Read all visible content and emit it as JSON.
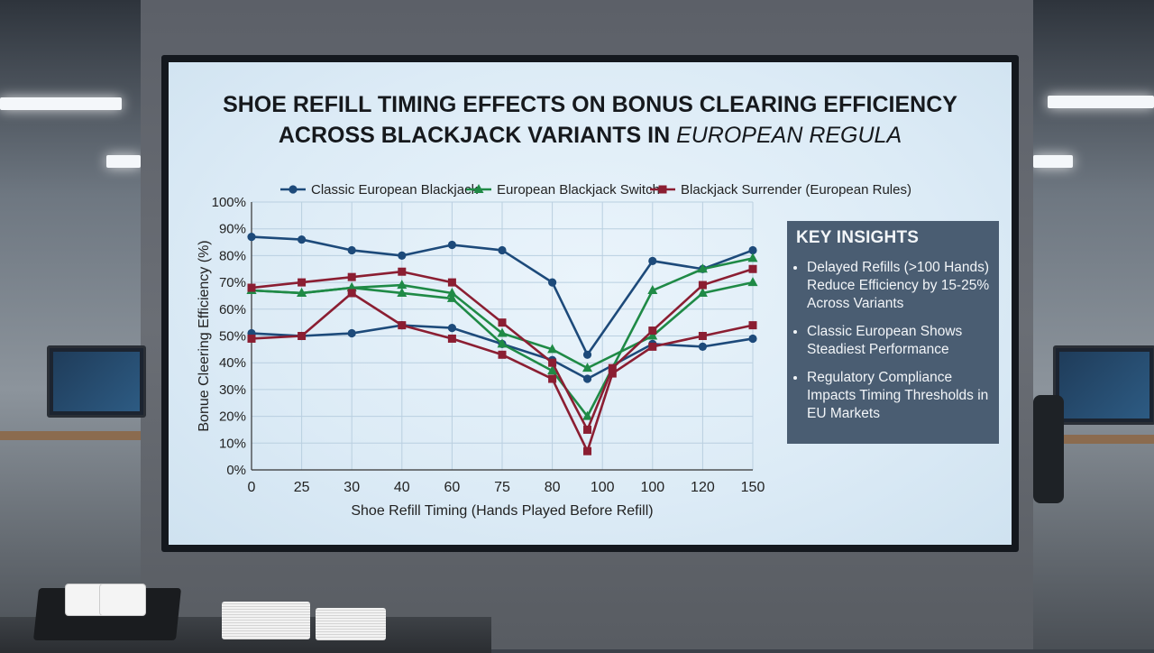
{
  "chart_data": {
    "type": "line",
    "title_main": "SHOE REFILL TIMING EFFECTS ON BONUS CLEARING EFFICIENCY ACROSS BLACKJACK VARIANTS IN",
    "title_tail": "EUROPEAN REGULA",
    "xlabel": "Shoe Refill Timing (Hands Played Before Refill)",
    "ylabel": "Bonue Cleering Efficiency (%)",
    "categories": [
      "0",
      "25",
      "30",
      "40",
      "60",
      "75",
      "80",
      "100",
      "100",
      "120",
      "150"
    ],
    "y_ticks": [
      "0%",
      "10%",
      "20%",
      "30%",
      "40%",
      "50%",
      "60%",
      "70%",
      "80%",
      "90%",
      "100%"
    ],
    "ylim": [
      0,
      100
    ],
    "grid": true,
    "legend_position": "top",
    "series": [
      {
        "name": "Classic European Blackjack",
        "color": "#1d4a7a",
        "marker": "circle",
        "x": [
          0,
          1,
          2,
          3,
          4,
          5,
          6,
          6.7,
          8,
          9,
          10
        ],
        "values": [
          87,
          86,
          82,
          80,
          84,
          82,
          70,
          43,
          78,
          75,
          82
        ]
      },
      {
        "name": "Classic European Blackjack (lower)",
        "color": "#1d4a7a",
        "marker": "circle",
        "x": [
          0,
          1,
          2,
          3,
          4,
          5,
          6,
          6.7,
          8,
          9,
          10
        ],
        "values": [
          51,
          50,
          51,
          54,
          53,
          47,
          41,
          34,
          47,
          46,
          49
        ]
      },
      {
        "name": "European Blackjack Switch",
        "color": "#1f8a46",
        "marker": "triangle",
        "x": [
          0,
          1,
          2,
          3,
          4,
          5,
          6,
          6.7,
          8,
          9,
          10
        ],
        "values": [
          67,
          66,
          68,
          69,
          66,
          51,
          45,
          38,
          50,
          66,
          70
        ]
      },
      {
        "name": "European Blackjack Switch (lower)",
        "color": "#1f8a46",
        "marker": "triangle",
        "x": [
          0,
          1,
          2,
          3,
          4,
          5,
          6,
          6.7,
          8,
          9,
          10
        ],
        "values": [
          67,
          66,
          68,
          66,
          64,
          47,
          37,
          20,
          67,
          75,
          79
        ]
      },
      {
        "name": "Blackjack Surrender (European Rules)",
        "color": "#8b1e32",
        "marker": "square",
        "x": [
          0,
          1,
          2,
          3,
          4,
          5,
          6,
          6.7,
          7.2,
          8,
          9,
          10
        ],
        "values": [
          68,
          70,
          72,
          74,
          70,
          55,
          40,
          15,
          38,
          52,
          69,
          75
        ]
      },
      {
        "name": "Blackjack Surrender (European Rules) (lower)",
        "color": "#8b1e32",
        "marker": "square",
        "x": [
          0,
          1,
          2,
          3,
          4,
          5,
          6,
          6.7,
          7.2,
          8,
          9,
          10
        ],
        "values": [
          49,
          50,
          66,
          54,
          49,
          43,
          34,
          7,
          36,
          46,
          50,
          54
        ]
      }
    ]
  },
  "insights": {
    "title": "KEY INSIGHTS",
    "items": [
      "Delayed Refills (>100 Hands) Reduce Efficiency by 15-25% Across Variants",
      "Classic European Shows Steadiest Performance",
      "Regulatory Compliance Impacts Timing Thresholds in EU Markets"
    ]
  }
}
